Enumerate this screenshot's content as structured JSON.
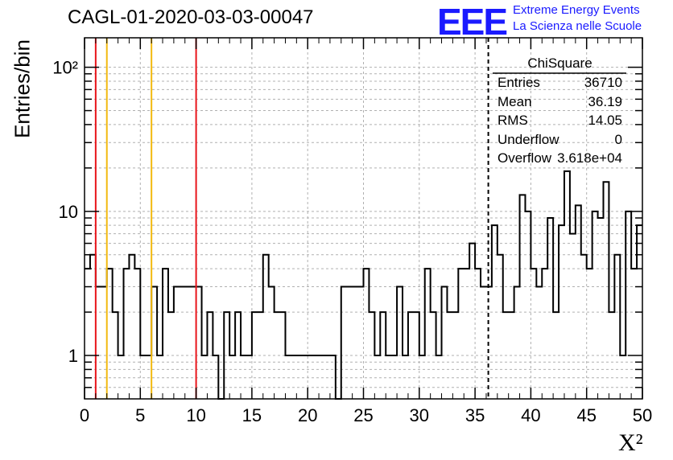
{
  "title": "CAGL-01-2020-03-03-00047",
  "logo": {
    "mark": "EEE",
    "line1": "Extreme Energy Events",
    "line2": "La Scienza nelle Scuole",
    "color": "#1a1aff"
  },
  "stats": {
    "title": "ChiSquare",
    "rows": [
      {
        "key": "Entries",
        "value": "36710"
      },
      {
        "key": "Mean",
        "value": "36.19"
      },
      {
        "key": "RMS",
        "value": "14.05"
      },
      {
        "key": "Underflow",
        "value": "0"
      },
      {
        "key": "Overflow",
        "value": "3.618e+04"
      }
    ]
  },
  "chart_data": {
    "type": "histogram",
    "xlabel": "X²",
    "ylabel": "Entries/bin",
    "xlim": [
      0,
      50
    ],
    "ylim": [
      0.5,
      160
    ],
    "yscale": "log",
    "grid": true,
    "xticks": [
      "0",
      "5",
      "10",
      "15",
      "20",
      "25",
      "30",
      "35",
      "40",
      "45",
      "50"
    ],
    "yticks": [
      {
        "value": 1,
        "label": "1"
      },
      {
        "value": 10,
        "label": "10"
      },
      {
        "value": 100,
        "label": "10²"
      }
    ],
    "bin_width": 0.5,
    "bin_start": 0,
    "counts": [
      4,
      5,
      3,
      3,
      4,
      2,
      1,
      4,
      5,
      4,
      1,
      1,
      3,
      1,
      4,
      2,
      3,
      3,
      3,
      3,
      3,
      1,
      2,
      1,
      0,
      2,
      1,
      2,
      1,
      1,
      2,
      2,
      5,
      3,
      2,
      2,
      1,
      1,
      1,
      1,
      1,
      1,
      1,
      1,
      1,
      0,
      3,
      3,
      3,
      3,
      4,
      2,
      1,
      2,
      1,
      1,
      3,
      1,
      2,
      2,
      1,
      4,
      2,
      1,
      3,
      2,
      2,
      4,
      4,
      6,
      4,
      3,
      3,
      8,
      5,
      2,
      2,
      3,
      13,
      10,
      4,
      3,
      4,
      9,
      2,
      8,
      19,
      7,
      11,
      5,
      4,
      10,
      9,
      16,
      2,
      5,
      1,
      10,
      4,
      8
    ],
    "vertical_lines": [
      {
        "x": 1,
        "color": "#e8141a"
      },
      {
        "x": 2,
        "color": "#f2b90f"
      },
      {
        "x": 6,
        "color": "#f2b90f"
      },
      {
        "x": 10,
        "color": "#e8141a"
      },
      {
        "x": 36.19,
        "color": "#000000",
        "style": "dashed"
      }
    ]
  }
}
